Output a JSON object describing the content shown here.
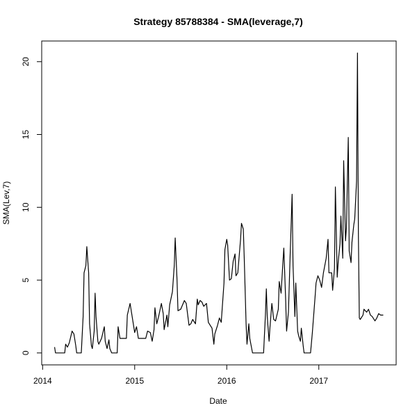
{
  "chart_data": {
    "type": "line",
    "title": "Strategy 85788384 - SMA(leverage,7)",
    "x_label": "Date",
    "y_label": "SMA(Lev,7)",
    "color": "#000000",
    "xlim": [
      2013.99,
      2017.84
    ],
    "ylim": [
      -0.82,
      21.42
    ],
    "xticks": [
      2014,
      2015,
      2016,
      2017
    ],
    "yticks": [
      0,
      5,
      10,
      15,
      20
    ],
    "x": [
      2014.13,
      2014.14,
      2014.24,
      2014.25,
      2014.27,
      2014.29,
      2014.32,
      2014.34,
      2014.36,
      2014.37,
      2014.42,
      2014.44,
      2014.45,
      2014.47,
      2014.48,
      2014.5,
      2014.51,
      2014.53,
      2014.54,
      2014.56,
      2014.57,
      2014.58,
      2014.6,
      2014.61,
      2014.64,
      2014.67,
      2014.68,
      2014.7,
      2014.72,
      2014.73,
      2014.75,
      2014.81,
      2014.82,
      2014.84,
      2014.91,
      2014.92,
      2014.95,
      2014.96,
      2014.98,
      2015.0,
      2015.02,
      2015.04,
      2015.12,
      2015.14,
      2015.17,
      2015.19,
      2015.21,
      2015.22,
      2015.24,
      2015.26,
      2015.29,
      2015.31,
      2015.32,
      2015.35,
      2015.36,
      2015.38,
      2015.41,
      2015.43,
      2015.44,
      2015.46,
      2015.47,
      2015.5,
      2015.52,
      2015.54,
      2015.56,
      2015.59,
      2015.61,
      2015.63,
      2015.66,
      2015.68,
      2015.69,
      2015.71,
      2015.73,
      2015.75,
      2015.78,
      2015.8,
      2015.81,
      2015.84,
      2015.86,
      2015.87,
      2015.9,
      2015.92,
      2015.94,
      2015.95,
      2015.97,
      2015.98,
      2016.0,
      2016.01,
      2016.03,
      2016.05,
      2016.07,
      2016.09,
      2016.1,
      2016.12,
      2016.15,
      2016.16,
      2016.18,
      2016.19,
      2016.21,
      2016.22,
      2016.24,
      2016.25,
      2016.28,
      2016.4,
      2016.42,
      2016.43,
      2016.44,
      2016.46,
      2016.47,
      2016.49,
      2016.51,
      2016.53,
      2016.56,
      2016.57,
      2016.59,
      2016.61,
      2016.62,
      2016.64,
      2016.65,
      2016.67,
      2016.69,
      2016.71,
      2016.72,
      2016.74,
      2016.75,
      2016.77,
      2016.78,
      2016.8,
      2016.81,
      2016.83,
      2016.84,
      2016.91,
      2016.93,
      2016.96,
      2016.97,
      2016.99,
      2017.01,
      2017.03,
      2017.05,
      2017.08,
      2017.1,
      2017.11,
      2017.14,
      2017.15,
      2017.17,
      2017.18,
      2017.2,
      2017.21,
      2017.23,
      2017.24,
      2017.26,
      2017.27,
      2017.29,
      2017.3,
      2017.32,
      2017.33,
      2017.35,
      2017.36,
      2017.38,
      2017.39,
      2017.41,
      2017.42,
      2017.43,
      2017.44,
      2017.45,
      2017.48,
      2017.49,
      2017.52,
      2017.54,
      2017.56,
      2017.58,
      2017.61,
      2017.63,
      2017.65,
      2017.67,
      2017.7
    ],
    "values": [
      0.4,
      0,
      0,
      0.6,
      0.4,
      0.7,
      1.5,
      1.3,
      0.5,
      0,
      0,
      2.5,
      5.5,
      6.0,
      7.3,
      5.5,
      2,
      0.5,
      0.3,
      1.5,
      4.1,
      2.5,
      0.8,
      0.6,
      1,
      1.8,
      0.8,
      0.3,
      0.9,
      0.3,
      0,
      0,
      1.8,
      1.0,
      1.0,
      2.6,
      3.4,
      3.0,
      2.2,
      1.4,
      1.8,
      1.0,
      1.0,
      1.5,
      1.4,
      0.8,
      1.6,
      3.1,
      2.0,
      2.5,
      3.4,
      2.7,
      1.6,
      2.6,
      1.8,
      3.3,
      4.2,
      6,
      7.9,
      5,
      2.9,
      3.0,
      3.3,
      3.6,
      3.4,
      1.9,
      2.0,
      2.3,
      2.0,
      3.7,
      3.3,
      3.6,
      3.5,
      3.2,
      3.4,
      2.1,
      2.0,
      1.7,
      0.6,
      1.3,
      1.9,
      2.4,
      2.1,
      3.0,
      4.8,
      7.1,
      7.8,
      7.4,
      5.0,
      5.1,
      6.3,
      6.8,
      5.3,
      5.5,
      7.8,
      8.9,
      8.5,
      6.5,
      2.0,
      0.6,
      2.0,
      1.0,
      0,
      0,
      2.6,
      4.4,
      2.5,
      0.8,
      1.8,
      3.4,
      2.3,
      2.2,
      3.0,
      4.9,
      4.1,
      6.2,
      7.2,
      3.6,
      1.5,
      2.8,
      7,
      10.9,
      6,
      2.5,
      4.8,
      1.5,
      1.2,
      0.8,
      1.7,
      0.5,
      0,
      0,
      1.4,
      3.9,
      4.8,
      5.3,
      5.0,
      4.5,
      5.5,
      6.5,
      7.8,
      5.5,
      5.5,
      4.3,
      5.8,
      11.4,
      5.2,
      6.2,
      7.5,
      9.4,
      6.5,
      13.2,
      7.7,
      8.6,
      14.8,
      7,
      6.2,
      7.6,
      8.8,
      9.2,
      11.8,
      20.6,
      8,
      2.4,
      2.3,
      2.6,
      3.0,
      2.8,
      3.0,
      2.6,
      2.5,
      2.2,
      2.4,
      2.7,
      2.6,
      2.6
    ]
  }
}
